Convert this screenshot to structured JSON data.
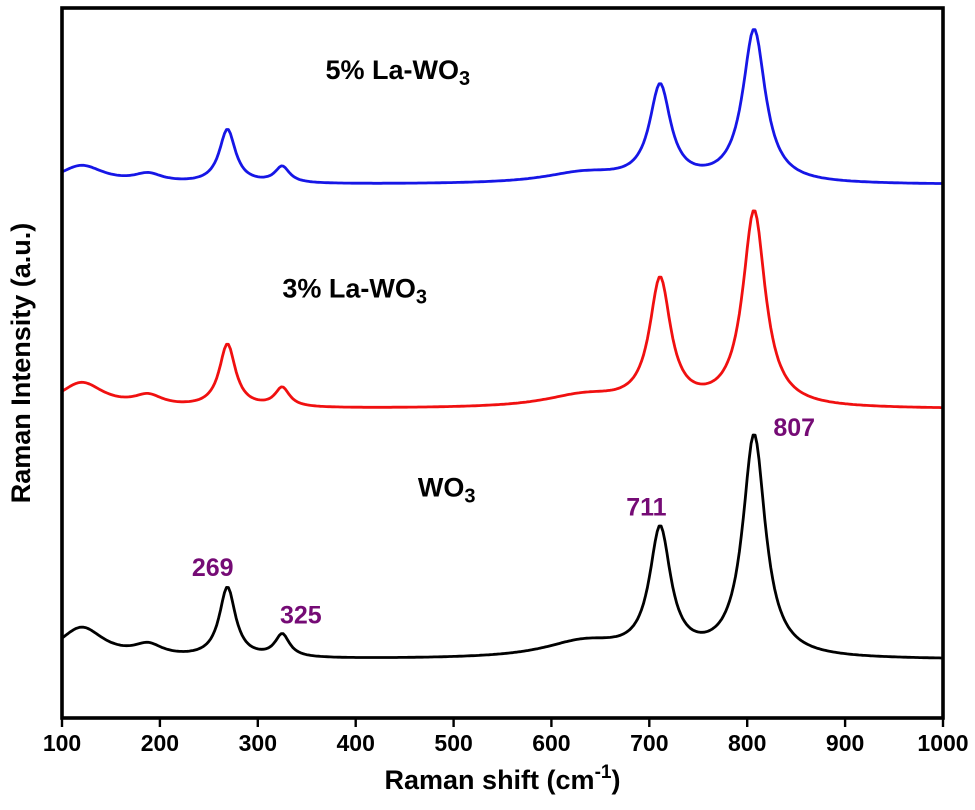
{
  "figure": {
    "ylabel": "Raman Intensity (a.u.)",
    "xlabel": {
      "pre": "Raman shift (cm",
      "sup": "-1",
      "post": ")"
    }
  },
  "style": {
    "background": "#ffffff",
    "axis_color": "#000000",
    "axis_width": 3.6,
    "curve_width": 2.8,
    "tick_len": 9,
    "tick_width": 2.4,
    "annotation_color": "#750b75"
  },
  "chart_data": {
    "type": "line",
    "title": "",
    "xlabel": "Raman shift (cm⁻¹)",
    "ylabel": "Raman Intensity (a.u.)",
    "xlim": [
      100,
      1000
    ],
    "ylim": [
      0,
      100
    ],
    "x_ticks": [
      100,
      200,
      300,
      400,
      500,
      600,
      700,
      800,
      900,
      1000
    ],
    "grid": false,
    "legend_position": "inline-labels",
    "annotated_peak_positions_cm1": [
      269,
      325,
      711,
      807
    ],
    "series": [
      {
        "name": "WO3",
        "label": {
          "pre": "WO",
          "sub": "3"
        },
        "label_pos": {
          "x": 493,
          "y": 32.5
        },
        "color": "#000000",
        "baseline": 8.2,
        "peaks": [
          {
            "center": 120,
            "amplitude": 4.4,
            "hwhm": 28
          },
          {
            "center": 188,
            "amplitude": 1.6,
            "hwhm": 18
          },
          {
            "center": 269,
            "amplitude": 9.9,
            "hwhm": 10
          },
          {
            "center": 325,
            "amplitude": 3.2,
            "hwhm": 9
          },
          {
            "center": 633,
            "amplitude": 2.3,
            "hwhm": 50
          },
          {
            "center": 711,
            "amplitude": 17.6,
            "hwhm": 13
          },
          {
            "center": 807,
            "amplitude": 31.3,
            "hwhm": 14
          }
        ]
      },
      {
        "name": "3% La-WO3",
        "label": {
          "pre": "3% La-WO",
          "sub": "3"
        },
        "label_pos": {
          "x": 399,
          "y": 60.5
        },
        "color": "#f01010",
        "baseline": 43.5,
        "peaks": [
          {
            "center": 120,
            "amplitude": 3.6,
            "hwhm": 28
          },
          {
            "center": 188,
            "amplitude": 1.5,
            "hwhm": 18
          },
          {
            "center": 269,
            "amplitude": 8.9,
            "hwhm": 10
          },
          {
            "center": 325,
            "amplitude": 2.7,
            "hwhm": 9
          },
          {
            "center": 633,
            "amplitude": 1.7,
            "hwhm": 50
          },
          {
            "center": 711,
            "amplitude": 17.6,
            "hwhm": 13
          },
          {
            "center": 807,
            "amplitude": 27.6,
            "hwhm": 14
          }
        ]
      },
      {
        "name": "5% La-WO3",
        "label": {
          "pre": "5% La-WO",
          "sub": "3"
        },
        "label_pos": {
          "x": 443,
          "y": 91.3
        },
        "color": "#1616e6",
        "baseline": 75.1,
        "peaks": [
          {
            "center": 120,
            "amplitude": 2.6,
            "hwhm": 28
          },
          {
            "center": 188,
            "amplitude": 1.2,
            "hwhm": 18
          },
          {
            "center": 269,
            "amplitude": 7.6,
            "hwhm": 10
          },
          {
            "center": 325,
            "amplitude": 2.3,
            "hwhm": 9
          },
          {
            "center": 633,
            "amplitude": 1.5,
            "hwhm": 50
          },
          {
            "center": 711,
            "amplitude": 13.4,
            "hwhm": 13
          },
          {
            "center": 807,
            "amplitude": 21.6,
            "hwhm": 14
          }
        ]
      }
    ],
    "peak_labels": [
      {
        "text": "269",
        "x": 254,
        "y": 21.3
      },
      {
        "text": "325",
        "x": 344,
        "y": 14.6
      },
      {
        "text": "711",
        "x": 697,
        "y": 29.8
      },
      {
        "text": "807",
        "x": 848,
        "y": 41.0
      }
    ]
  }
}
